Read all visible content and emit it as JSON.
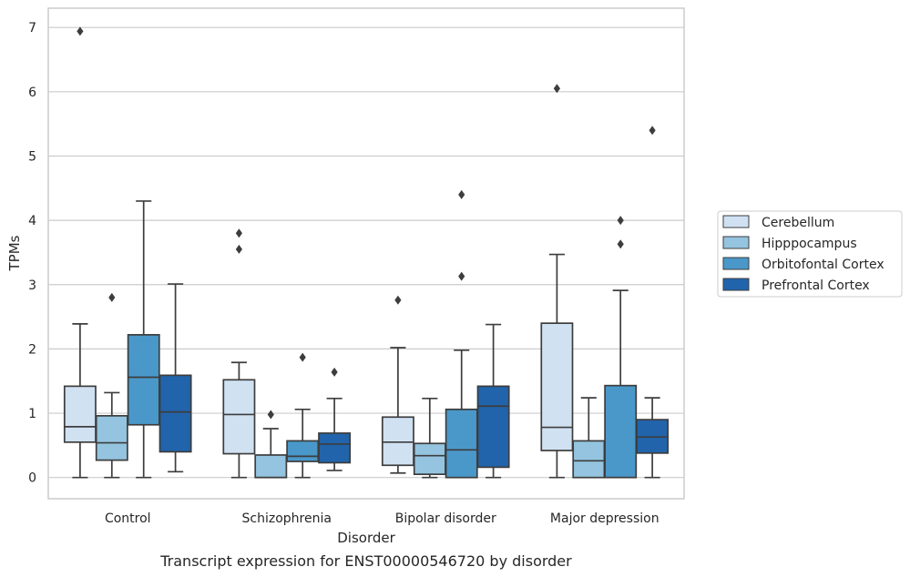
{
  "chart_data": {
    "type": "box",
    "title": "",
    "caption": "Transcript expression for ENST00000546720 by disorder",
    "xlabel": "Disorder",
    "ylabel": "TPMs",
    "ylim": [
      -0.33,
      7.3
    ],
    "yticks": [
      0,
      1,
      2,
      3,
      4,
      5,
      6,
      7
    ],
    "grid": "horizontal",
    "legend_position": "right",
    "categories": [
      "Control",
      "Schizophrenia",
      "Bipolar disorder",
      "Major depression"
    ],
    "series": [
      {
        "name": "Cerebellum",
        "color": "#d0e1f2",
        "boxes": [
          {
            "whislo": 0.0,
            "q1": 0.55,
            "med": 0.79,
            "q3": 1.42,
            "whishi": 2.39,
            "fliers": [
              6.94
            ]
          },
          {
            "whislo": 0.0,
            "q1": 0.37,
            "med": 0.98,
            "q3": 1.52,
            "whishi": 1.79,
            "fliers": [
              3.8,
              3.55
            ]
          },
          {
            "whislo": 0.07,
            "q1": 0.19,
            "med": 0.55,
            "q3": 0.94,
            "whishi": 2.02,
            "fliers": [
              2.76
            ]
          },
          {
            "whislo": 0.0,
            "q1": 0.42,
            "med": 0.78,
            "q3": 2.4,
            "whishi": 3.47,
            "fliers": [
              6.05
            ]
          }
        ]
      },
      {
        "name": "Hipppocampus",
        "color": "#94c4df",
        "boxes": [
          {
            "whislo": 0.0,
            "q1": 0.27,
            "med": 0.54,
            "q3": 0.96,
            "whishi": 1.32,
            "fliers": [
              2.8
            ]
          },
          {
            "whislo": 0.0,
            "q1": 0.0,
            "med": 0.0,
            "q3": 0.35,
            "whishi": 0.76,
            "fliers": [
              0.98
            ]
          },
          {
            "whislo": 0.0,
            "q1": 0.05,
            "med": 0.34,
            "q3": 0.53,
            "whishi": 1.23,
            "fliers": []
          },
          {
            "whislo": 0.0,
            "q1": 0.0,
            "med": 0.26,
            "q3": 0.57,
            "whishi": 1.24,
            "fliers": []
          }
        ]
      },
      {
        "name": "Orbitofontal Cortex",
        "color": "#4a98c9",
        "boxes": [
          {
            "whislo": 0.0,
            "q1": 0.82,
            "med": 1.56,
            "q3": 2.22,
            "whishi": 4.3,
            "fliers": []
          },
          {
            "whislo": 0.0,
            "q1": 0.25,
            "med": 0.33,
            "q3": 0.57,
            "whishi": 1.06,
            "fliers": [
              1.87
            ]
          },
          {
            "whislo": 0.0,
            "q1": 0.0,
            "med": 0.43,
            "q3": 1.06,
            "whishi": 1.98,
            "fliers": [
              4.4,
              3.13
            ]
          },
          {
            "whislo": 0.0,
            "q1": 0.0,
            "med": 0.0,
            "q3": 1.43,
            "whishi": 2.91,
            "fliers": [
              4.0,
              3.63
            ]
          }
        ]
      },
      {
        "name": "Prefrontal Cortex",
        "color": "#2164ab",
        "boxes": [
          {
            "whislo": 0.09,
            "q1": 0.4,
            "med": 1.02,
            "q3": 1.59,
            "whishi": 3.01,
            "fliers": []
          },
          {
            "whislo": 0.11,
            "q1": 0.23,
            "med": 0.52,
            "q3": 0.69,
            "whishi": 1.23,
            "fliers": [
              1.64
            ]
          },
          {
            "whislo": 0.0,
            "q1": 0.16,
            "med": 1.11,
            "q3": 1.42,
            "whishi": 2.38,
            "fliers": []
          },
          {
            "whislo": 0.0,
            "q1": 0.38,
            "med": 0.63,
            "q3": 0.9,
            "whishi": 1.24,
            "fliers": [
              5.4
            ]
          }
        ]
      }
    ]
  }
}
